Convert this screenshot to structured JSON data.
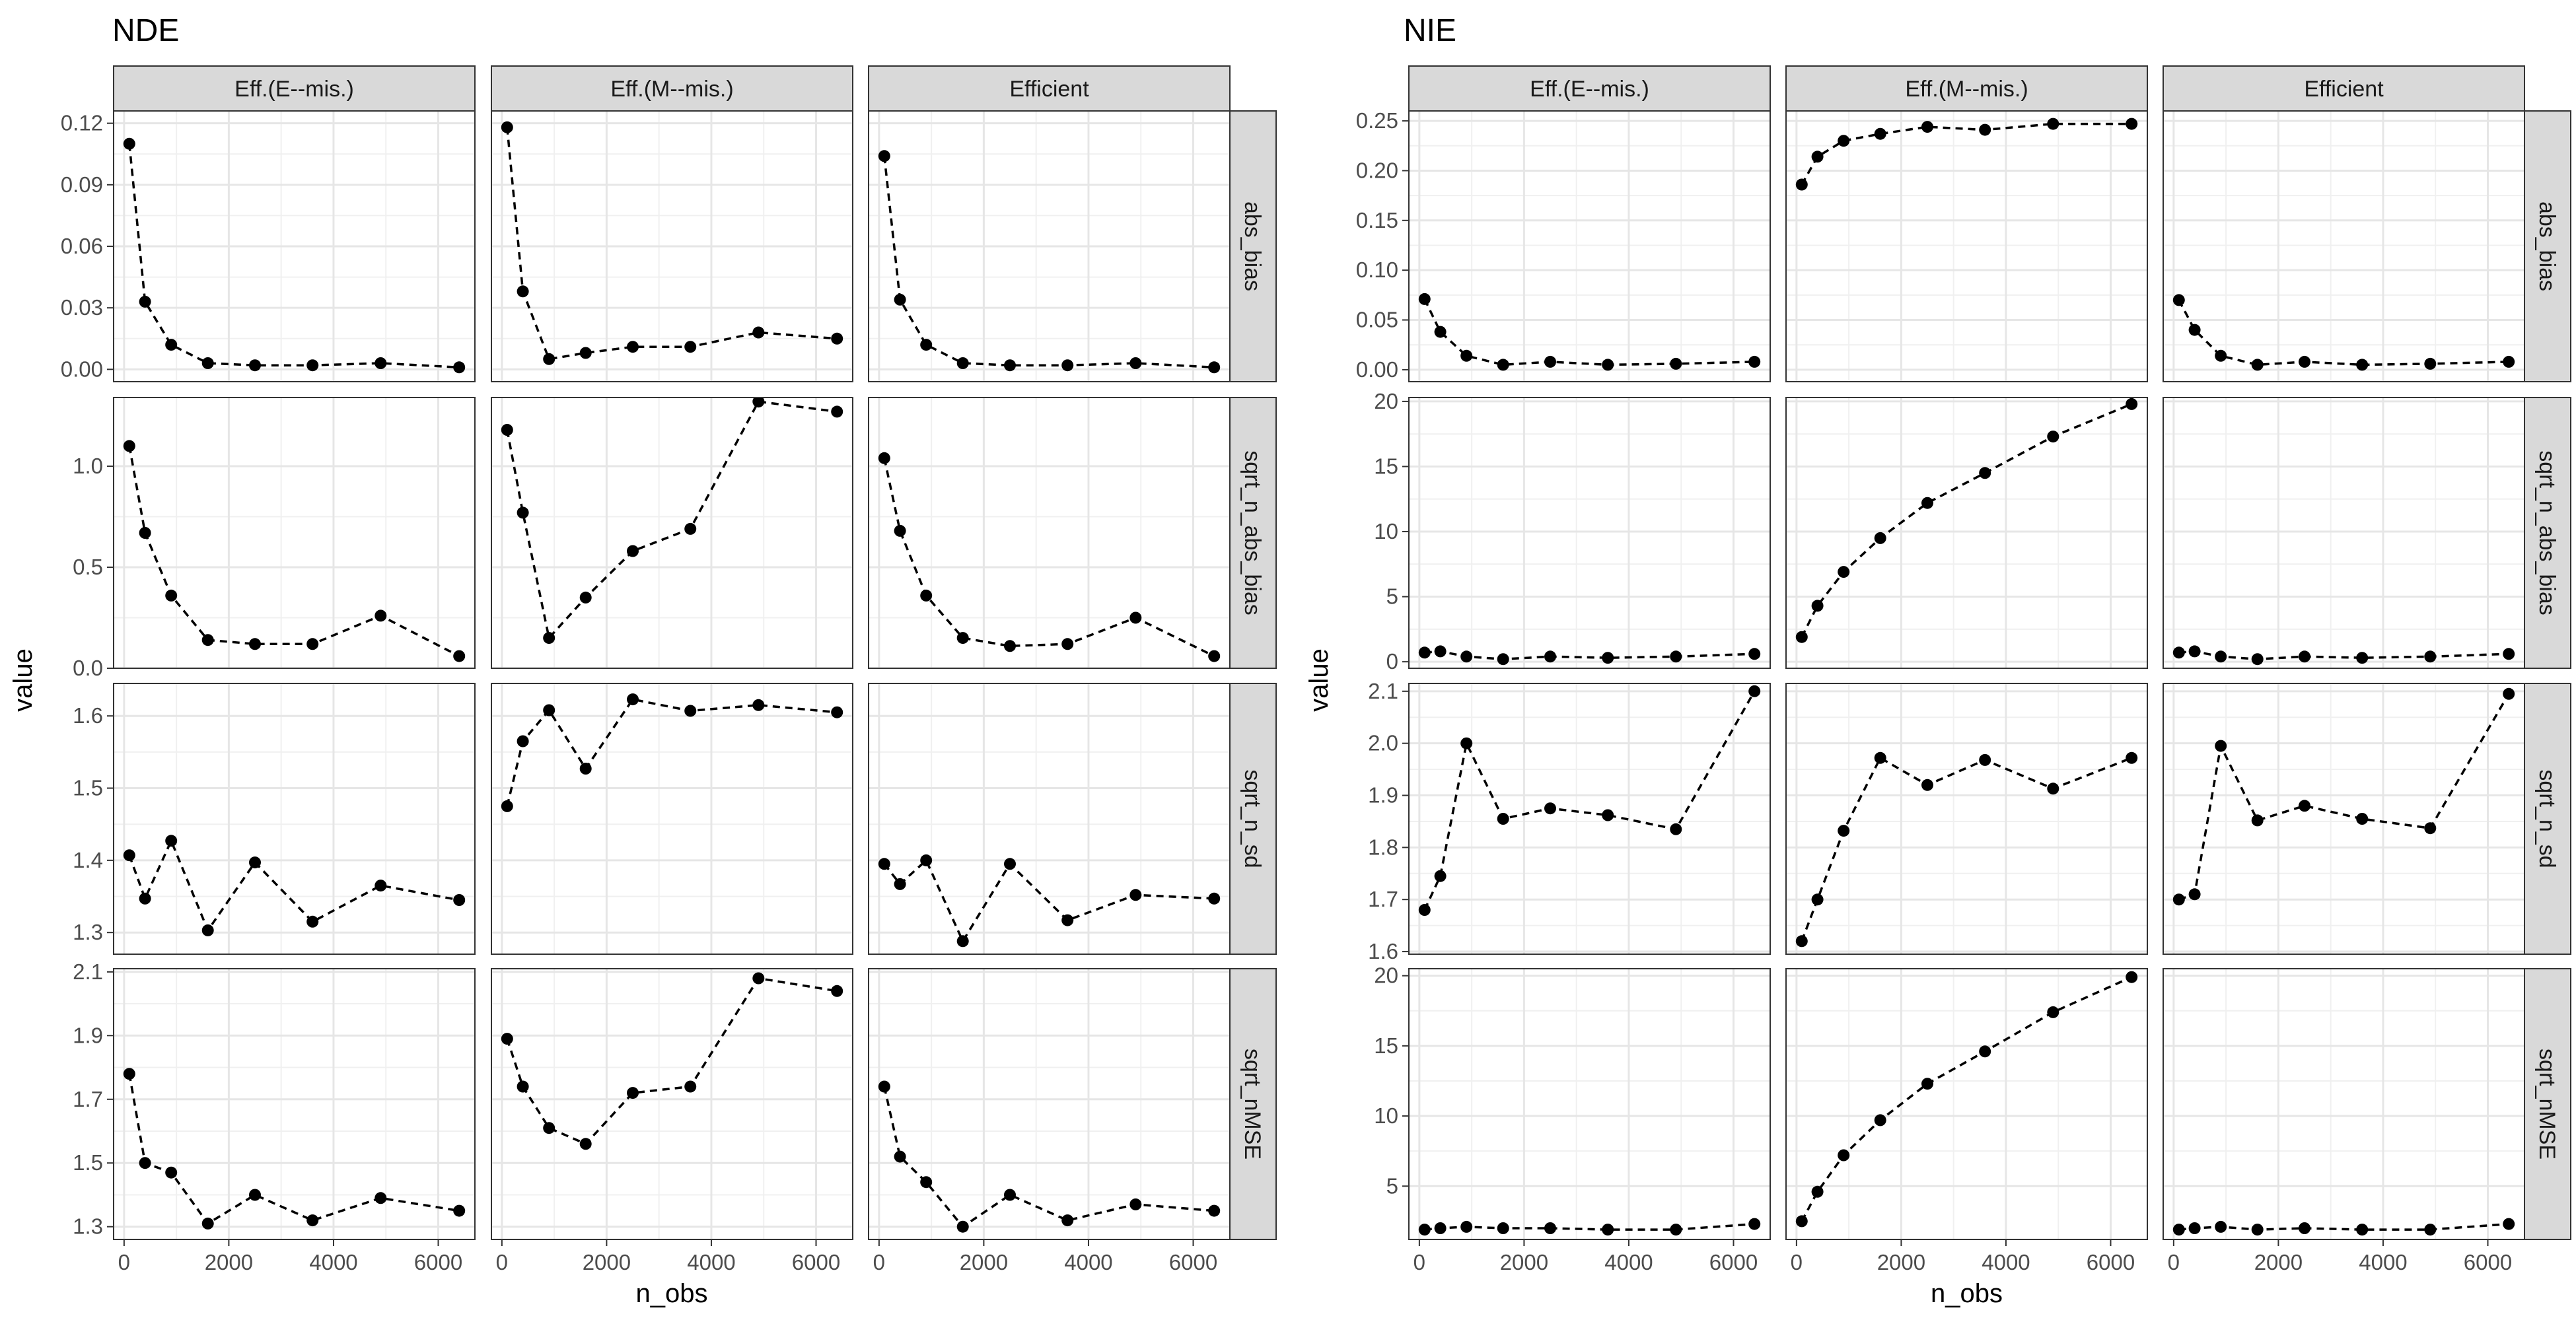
{
  "chart_data": [
    {
      "type": "line",
      "title": "NDE",
      "xlabel": "n_obs",
      "ylabel": "value",
      "columns": [
        "Eff.(E--mis.)",
        "Eff.(M--mis.)",
        "Efficient"
      ],
      "rows": [
        "abs_bias",
        "sqrt_n_abs_bias",
        "sqrt_n_sd",
        "sqrt_nMSE"
      ],
      "x": [
        100,
        400,
        900,
        1600,
        2500,
        3600,
        4900,
        6400
      ],
      "xlim": [
        -200,
        6700
      ],
      "xticks": [
        0,
        2000,
        4000,
        6000
      ],
      "xtick_labels": [
        "0",
        "2000",
        "4000",
        "6000"
      ],
      "grid": true,
      "line_style": "dashed",
      "marker": "circle",
      "panels": [
        {
          "row": "abs_bias",
          "ylim": [
            -0.006,
            0.126
          ],
          "yticks": [
            0,
            0.03,
            0.06,
            0.09,
            0.12
          ],
          "ytick_labels": [
            "0.00",
            "0.03",
            "0.06",
            "0.09",
            "0.12"
          ],
          "series": [
            {
              "column": "Eff.(E--mis.)",
              "values": [
                0.11,
                0.033,
                0.012,
                0.003,
                0.002,
                0.002,
                0.003,
                0.001
              ]
            },
            {
              "column": "Eff.(M--mis.)",
              "values": [
                0.118,
                0.038,
                0.005,
                0.008,
                0.011,
                0.011,
                0.018,
                0.015
              ]
            },
            {
              "column": "Efficient",
              "values": [
                0.104,
                0.034,
                0.012,
                0.003,
                0.002,
                0.002,
                0.003,
                0.001
              ]
            }
          ]
        },
        {
          "row": "sqrt_n_abs_bias",
          "ylim": [
            0,
            1.34
          ],
          "yticks": [
            0,
            0.5,
            1
          ],
          "ytick_labels": [
            "0.0",
            "0.5",
            "1.0"
          ],
          "series": [
            {
              "column": "Eff.(E--mis.)",
              "values": [
                1.1,
                0.67,
                0.36,
                0.14,
                0.12,
                0.12,
                0.26,
                0.06
              ]
            },
            {
              "column": "Eff.(M--mis.)",
              "values": [
                1.18,
                0.77,
                0.15,
                0.35,
                0.58,
                0.69,
                1.32,
                1.27
              ]
            },
            {
              "column": "Efficient",
              "values": [
                1.04,
                0.68,
                0.36,
                0.15,
                0.11,
                0.12,
                0.25,
                0.06
              ]
            }
          ]
        },
        {
          "row": "sqrt_n_sd",
          "ylim": [
            1.27,
            1.645
          ],
          "yticks": [
            1.3,
            1.4,
            1.5,
            1.6
          ],
          "ytick_labels": [
            "1.3",
            "1.4",
            "1.5",
            "1.6"
          ],
          "series": [
            {
              "column": "Eff.(E--mis.)",
              "values": [
                1.407,
                1.347,
                1.427,
                1.303,
                1.397,
                1.315,
                1.365,
                1.345
              ]
            },
            {
              "column": "Eff.(M--mis.)",
              "values": [
                1.475,
                1.565,
                1.608,
                1.527,
                1.623,
                1.607,
                1.615,
                1.605
              ]
            },
            {
              "column": "Efficient",
              "values": [
                1.395,
                1.367,
                1.4,
                1.288,
                1.395,
                1.317,
                1.352,
                1.347
              ]
            }
          ]
        },
        {
          "row": "sqrt_nMSE",
          "ylim": [
            1.26,
            2.11
          ],
          "yticks": [
            1.3,
            1.5,
            1.7,
            1.9,
            2.1
          ],
          "ytick_labels": [
            "1.3",
            "1.5",
            "1.7",
            "1.9",
            "2.1"
          ],
          "series": [
            {
              "column": "Eff.(E--mis.)",
              "values": [
                1.78,
                1.5,
                1.47,
                1.31,
                1.4,
                1.32,
                1.39,
                1.35
              ]
            },
            {
              "column": "Eff.(M--mis.)",
              "values": [
                1.89,
                1.74,
                1.61,
                1.56,
                1.72,
                1.74,
                2.08,
                2.04
              ]
            },
            {
              "column": "Efficient",
              "values": [
                1.74,
                1.52,
                1.44,
                1.3,
                1.4,
                1.32,
                1.37,
                1.35
              ]
            }
          ]
        }
      ]
    },
    {
      "type": "line",
      "title": "NIE",
      "xlabel": "n_obs",
      "ylabel": "value",
      "columns": [
        "Eff.(E--mis.)",
        "Eff.(M--mis.)",
        "Efficient"
      ],
      "rows": [
        "abs_bias",
        "sqrt_n_abs_bias",
        "sqrt_n_sd",
        "sqrt_nMSE"
      ],
      "x": [
        100,
        400,
        900,
        1600,
        2500,
        3600,
        4900,
        6400
      ],
      "xlim": [
        -200,
        6700
      ],
      "xticks": [
        0,
        2000,
        4000,
        6000
      ],
      "xtick_labels": [
        "0",
        "2000",
        "4000",
        "6000"
      ],
      "grid": true,
      "line_style": "dashed",
      "marker": "circle",
      "panels": [
        {
          "row": "abs_bias",
          "ylim": [
            -0.012,
            0.26
          ],
          "yticks": [
            0,
            0.05,
            0.1,
            0.15,
            0.2,
            0.25
          ],
          "ytick_labels": [
            "0.00",
            "0.05",
            "0.10",
            "0.15",
            "0.20",
            "0.25"
          ],
          "series": [
            {
              "column": "Eff.(E--mis.)",
              "values": [
                0.071,
                0.038,
                0.014,
                0.005,
                0.008,
                0.005,
                0.006,
                0.008
              ]
            },
            {
              "column": "Eff.(M--mis.)",
              "values": [
                0.186,
                0.214,
                0.23,
                0.237,
                0.244,
                0.241,
                0.247,
                0.247
              ]
            },
            {
              "column": "Efficient",
              "values": [
                0.07,
                0.04,
                0.014,
                0.005,
                0.008,
                0.005,
                0.006,
                0.008
              ]
            }
          ]
        },
        {
          "row": "sqrt_n_abs_bias",
          "ylim": [
            -0.5,
            20.3
          ],
          "yticks": [
            0,
            5,
            10,
            15,
            20
          ],
          "ytick_labels": [
            "0",
            "5",
            "10",
            "15",
            "20"
          ],
          "series": [
            {
              "column": "Eff.(E--mis.)",
              "values": [
                0.7,
                0.8,
                0.4,
                0.2,
                0.4,
                0.3,
                0.4,
                0.6
              ]
            },
            {
              "column": "Eff.(M--mis.)",
              "values": [
                1.9,
                4.3,
                6.9,
                9.5,
                12.2,
                14.5,
                17.3,
                19.8
              ]
            },
            {
              "column": "Efficient",
              "values": [
                0.7,
                0.8,
                0.4,
                0.2,
                0.4,
                0.3,
                0.4,
                0.6
              ]
            }
          ]
        },
        {
          "row": "sqrt_n_sd",
          "ylim": [
            1.595,
            2.115
          ],
          "yticks": [
            1.6,
            1.7,
            1.8,
            1.9,
            2.0,
            2.1
          ],
          "ytick_labels": [
            "1.6",
            "1.7",
            "1.8",
            "1.9",
            "2.0",
            "2.1"
          ],
          "series": [
            {
              "column": "Eff.(E--mis.)",
              "values": [
                1.68,
                1.745,
                2.0,
                1.855,
                1.875,
                1.862,
                1.835,
                2.1
              ]
            },
            {
              "column": "Eff.(M--mis.)",
              "values": [
                1.62,
                1.7,
                1.832,
                1.972,
                1.92,
                1.968,
                1.913,
                1.972
              ]
            },
            {
              "column": "Efficient",
              "values": [
                1.7,
                1.71,
                1.995,
                1.852,
                1.88,
                1.855,
                1.837,
                2.095
              ]
            }
          ]
        },
        {
          "row": "sqrt_nMSE",
          "ylim": [
            1.2,
            20.5
          ],
          "yticks": [
            5,
            10,
            15,
            20
          ],
          "ytick_labels": [
            "5",
            "10",
            "15",
            "20"
          ],
          "series": [
            {
              "column": "Eff.(E--mis.)",
              "values": [
                1.9,
                2.0,
                2.1,
                2.0,
                2.0,
                1.9,
                1.9,
                2.3
              ]
            },
            {
              "column": "Eff.(M--mis.)",
              "values": [
                2.5,
                4.6,
                7.2,
                9.7,
                12.3,
                14.6,
                17.4,
                19.9
              ]
            },
            {
              "column": "Efficient",
              "values": [
                1.9,
                2.0,
                2.1,
                1.9,
                2.0,
                1.9,
                1.9,
                2.3
              ]
            }
          ]
        }
      ]
    }
  ]
}
